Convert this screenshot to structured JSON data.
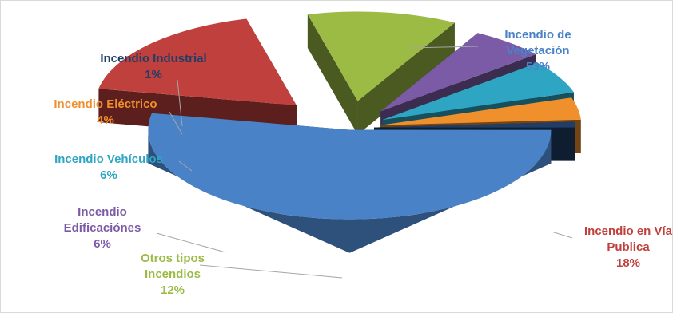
{
  "chart_data": {
    "type": "pie",
    "style": "3d-exploded",
    "title": "",
    "legend": "none",
    "slices": [
      {
        "name": "Incendio de Vegetación",
        "label_lines": [
          "Incendio de",
          "Vegetación"
        ],
        "value": 53,
        "value_label": "53%",
        "color": "#4a82c8"
      },
      {
        "name": "Incendio en Vía Publica",
        "label_lines": [
          "Incendio en Vía",
          "Publica"
        ],
        "value": 18,
        "value_label": "18%",
        "color": "#c0403d"
      },
      {
        "name": "Otros tipos Incendios",
        "label_lines": [
          "Otros tipos",
          "Incendios"
        ],
        "value": 12,
        "value_label": "12%",
        "color": "#9bbb45"
      },
      {
        "name": "Incendio Edificaciónes",
        "label_lines": [
          "Incendio",
          "Edificaciónes"
        ],
        "value": 6,
        "value_label": "6%",
        "color": "#7b5ba6"
      },
      {
        "name": "Incendio Vehículos",
        "label_lines": [
          "Incendio Vehículos"
        ],
        "value": 6,
        "value_label": "6%",
        "color": "#2ea6c3"
      },
      {
        "name": "Incendio Eléctrico",
        "label_lines": [
          "Incendio Eléctrico"
        ],
        "value": 4,
        "value_label": "4%",
        "color": "#f0902c"
      },
      {
        "name": "Incendio Industrial",
        "label_lines": [
          "Incendio Industrial"
        ],
        "value": 1,
        "value_label": "1%",
        "color": "#1f3d66"
      }
    ]
  },
  "colors": {
    "border": "#d9d9d9",
    "leader_line": "#a6a6a6",
    "label_text": {
      "Incendio de Vegetación": "#4a82c8",
      "Incendio en Vía Publica": "#c0403d",
      "Otros tipos Incendios": "#9bbb45",
      "Incendio Edificaciónes": "#7b5ba6",
      "Incendio Vehículos": "#2ea6c3",
      "Incendio Eléctrico": "#f0902c",
      "Incendio Industrial": "#1f3d66"
    }
  }
}
